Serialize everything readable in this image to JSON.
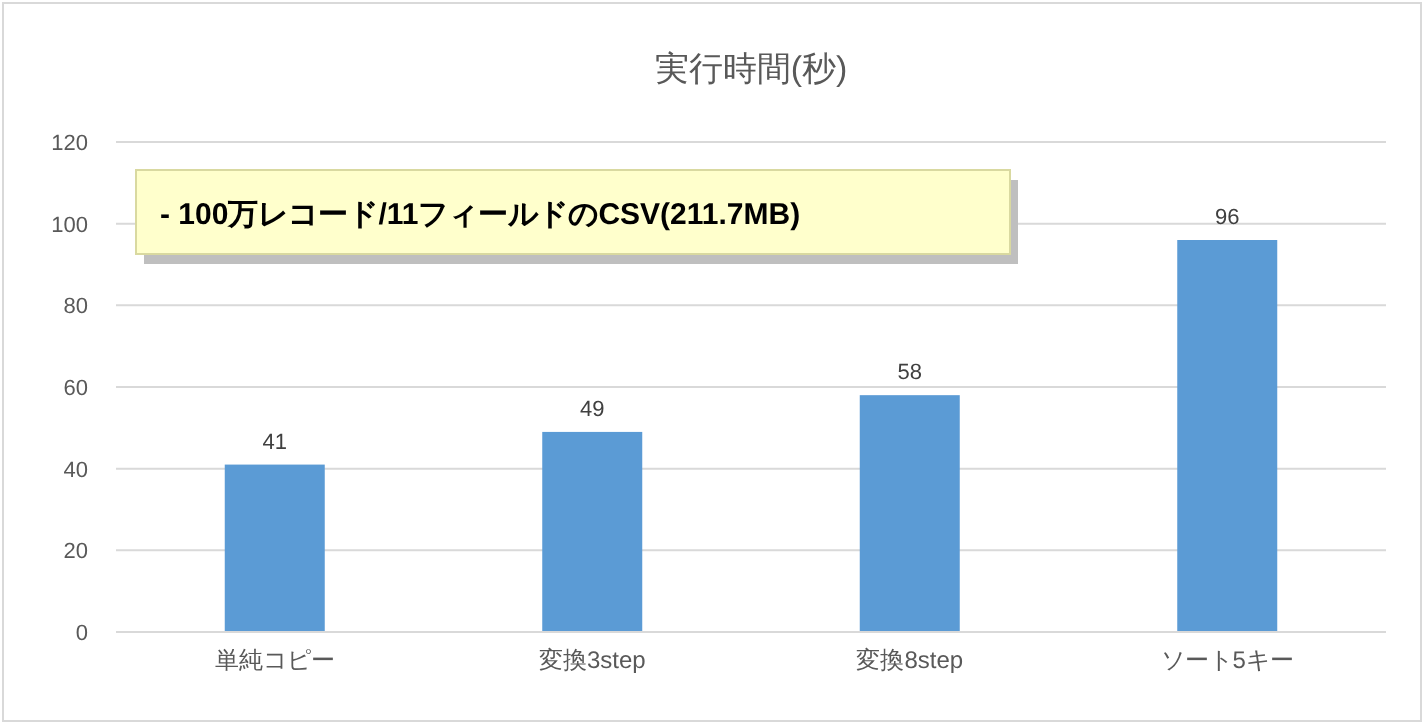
{
  "chart_data": {
    "type": "bar",
    "title": "実行時間(秒)",
    "categories": [
      "単純コピー",
      "変換3step",
      "変換8step",
      "ソート5キー"
    ],
    "values": [
      41,
      49,
      58,
      96
    ],
    "color": "#5b9bd5",
    "ylim": [
      0,
      120
    ],
    "yticks": [
      0,
      20,
      40,
      60,
      80,
      100,
      120
    ],
    "grid": "y",
    "data_labels": true,
    "annotations": [
      "- 100万レコード/11フィールドのCSV(211.7MB)"
    ]
  }
}
